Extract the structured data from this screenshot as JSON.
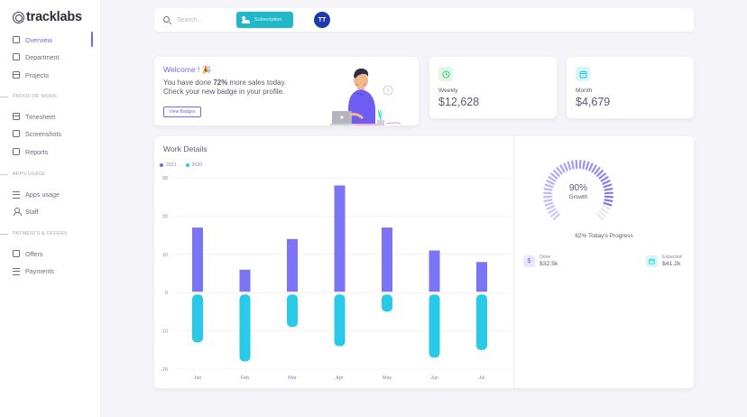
{
  "brand": {
    "name": "tracklabs"
  },
  "sidebar": {
    "items": [
      {
        "label": "Overview",
        "icon": "home-icon"
      },
      {
        "label": "Department",
        "icon": "department-icon"
      },
      {
        "label": "Projects",
        "icon": "projects-icon"
      },
      {
        "label": "Timesheet",
        "icon": "timesheet-icon"
      },
      {
        "label": "Screenshots",
        "icon": "screenshots-icon"
      },
      {
        "label": "Reports",
        "icon": "reports-icon"
      },
      {
        "label": "Apps usage",
        "icon": "apps-usage-icon"
      },
      {
        "label": "Staff",
        "icon": "staff-icon"
      },
      {
        "label": "Offers",
        "icon": "offers-icon"
      },
      {
        "label": "Payments",
        "icon": "payments-icon"
      }
    ],
    "sections": [
      "PROOF OF WORK",
      "APPS USAGE",
      "PAYMENTS & OFFERS"
    ]
  },
  "topbar": {
    "search_placeholder": "Search...",
    "subscription_label": "Subscription",
    "avatar_initials": "TT"
  },
  "welcome": {
    "title": "Welcome ! 🎉",
    "line1_prefix": "You have done ",
    "line1_bold": "72%",
    "line1_suffix": " more sales today.",
    "line2": "Check your new badge in your profile.",
    "button": "View Badges"
  },
  "stats": {
    "weekly": {
      "label": "Weekly",
      "value": "$12,628",
      "icon": "clock-icon",
      "color": "#28c76f"
    },
    "month": {
      "label": "Month",
      "value": "$4,679",
      "icon": "calendar-icon",
      "color": "#00cfe8"
    }
  },
  "work": {
    "title": "Work Details",
    "legend": [
      {
        "name": "2021",
        "color": "#7367f0"
      },
      {
        "name": "2020",
        "color": "#29c9e8"
      }
    ]
  },
  "chart_data": {
    "type": "bar",
    "title": "Work Details",
    "categories": [
      "Jan",
      "Feb",
      "Mar",
      "Apr",
      "May",
      "Jun",
      "Jul"
    ],
    "series": [
      {
        "name": "2021",
        "values": [
          17,
          6,
          14,
          28,
          17,
          11,
          8
        ],
        "color": "#7b75f5"
      },
      {
        "name": "2020",
        "values": [
          -13,
          -18,
          -9,
          -14,
          -5,
          -17,
          -15
        ],
        "color": "#29c9e8"
      }
    ],
    "yticks": [
      30,
      20,
      10,
      0,
      -10,
      -20
    ],
    "ylim": [
      -20,
      30
    ],
    "grid": true,
    "legend": "top-left"
  },
  "growth": {
    "percent": "90%",
    "label": "Growth",
    "progress_text": "62% Today's Progress",
    "value": 0.9,
    "done": {
      "label": "Done",
      "value": "$32.5k",
      "icon": "dollar-icon"
    },
    "expected": {
      "label": "Expected",
      "value": "$41.2k",
      "icon": "calendar-icon"
    }
  }
}
